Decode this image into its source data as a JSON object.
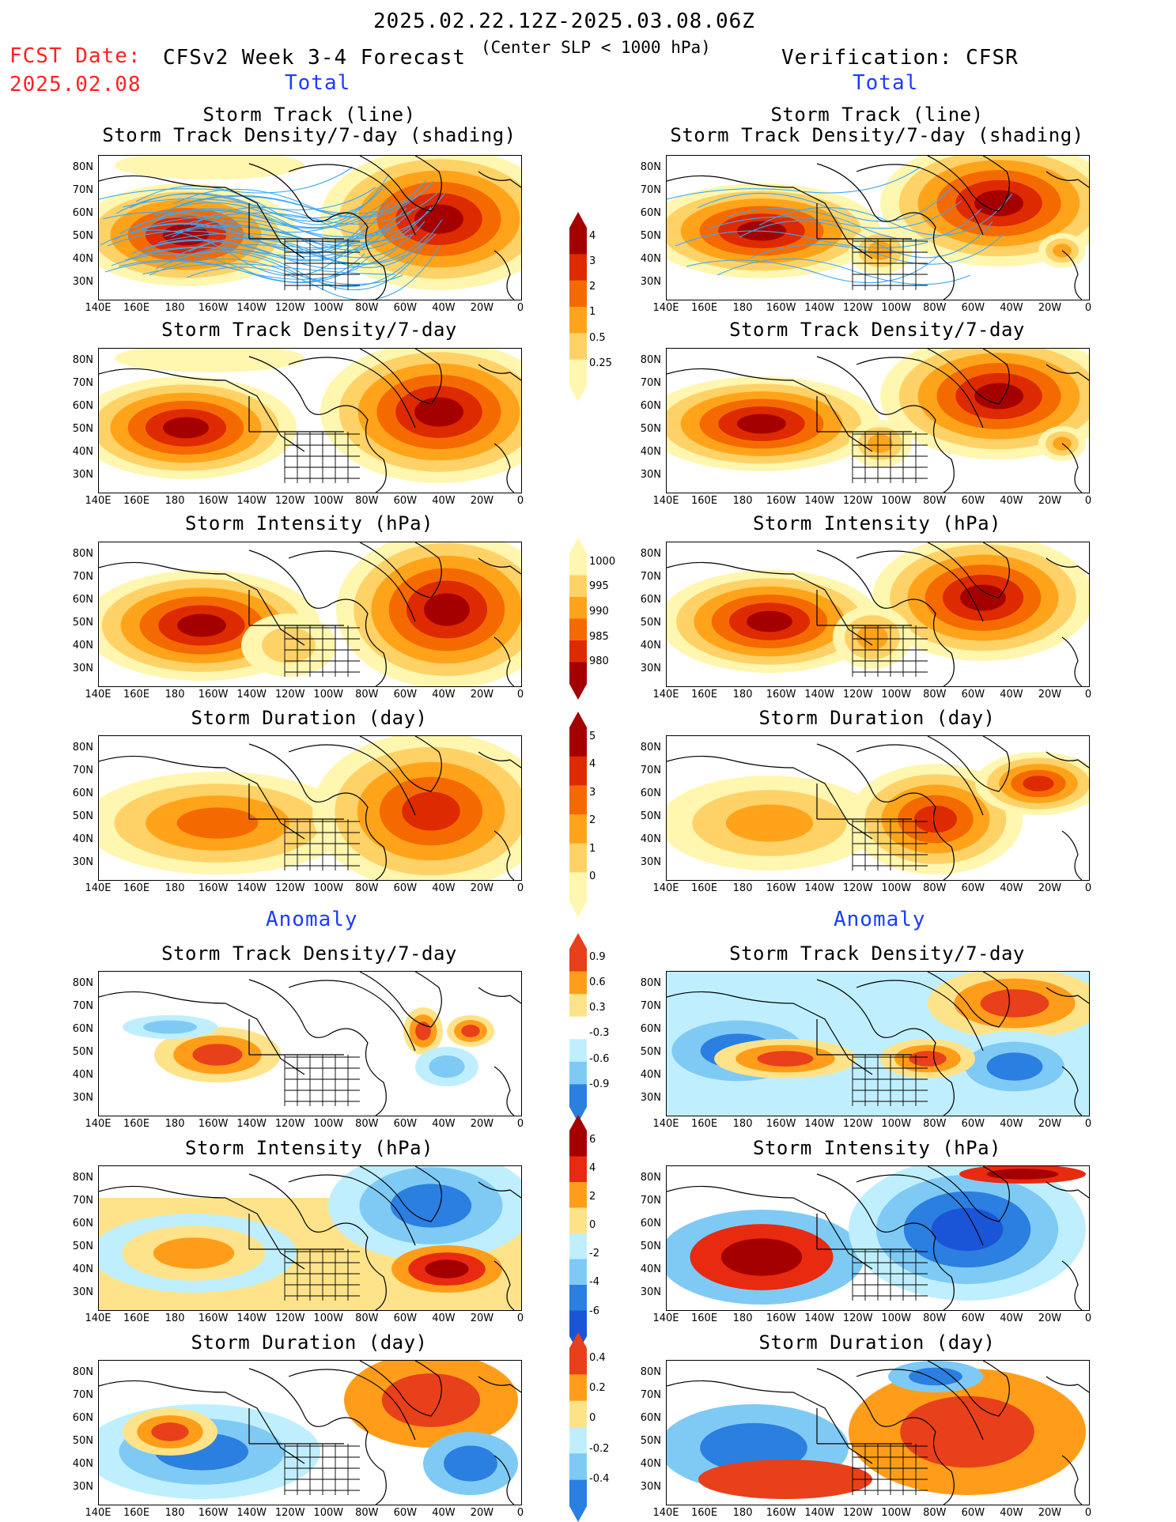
{
  "header": {
    "period": "2025.02.22.12Z-2025.03.08.06Z",
    "fcst_label": "FCST Date:",
    "fcst_date": "2025.02.08",
    "forecast_title": "CFSv2 Week 3-4 Forecast",
    "criterion": "(Center SLP < 1000 hPa)",
    "verification": "Verification: CFSR"
  },
  "sections": {
    "total": "Total",
    "anomaly": "Anomaly"
  },
  "axes": {
    "lat_labels": [
      "80N",
      "70N",
      "60N",
      "50N",
      "40N",
      "30N"
    ],
    "lon_labels": [
      "140E",
      "160E",
      "180",
      "160W",
      "140W",
      "120W",
      "100W",
      "80W",
      "60W",
      "40W",
      "20W",
      "0"
    ]
  },
  "panel_titles": {
    "track_line": "Storm Track (line)",
    "track_shading": "Storm Track Density/7-day (shading)",
    "density": "Storm Track Density/7-day",
    "intensity": "Storm Intensity (hPa)",
    "duration": "Storm Duration (day)"
  },
  "colorbars": {
    "density_total": {
      "labels": [
        "4",
        "3",
        "2",
        "1",
        "0.5",
        "0.25"
      ],
      "colors": [
        "#a50000",
        "#dd2a00",
        "#f56a00",
        "#ffa41a",
        "#ffd267",
        "#fff6b0"
      ]
    },
    "intensity_total": {
      "labels": [
        "1000",
        "995",
        "990",
        "985",
        "980"
      ],
      "colors": [
        "#fff6b0",
        "#ffd267",
        "#ffa41a",
        "#f56a00",
        "#dd2a00",
        "#a50000"
      ]
    },
    "duration_total": {
      "labels": [
        "5",
        "4",
        "3",
        "2",
        "1",
        "0"
      ],
      "colors": [
        "#a50000",
        "#dd2a00",
        "#f56a00",
        "#ffa41a",
        "#ffd267",
        "#fff6b0"
      ]
    },
    "density_anom": {
      "labels": [
        "0.9",
        "0.6",
        "0.3",
        "-0.3",
        "-0.6",
        "-0.9"
      ],
      "colors": [
        "#e8401a",
        "#ff9d1a",
        "#ffe38a",
        "#ffffff",
        "#bfefff",
        "#7fcaf5",
        "#2a7fe0"
      ]
    },
    "intensity_anom": {
      "labels": [
        "6",
        "4",
        "2",
        "0",
        "-2",
        "-4",
        "-6"
      ],
      "colors": [
        "#a50000",
        "#e82a10",
        "#ff9d1a",
        "#ffe38a",
        "#bfefff",
        "#7fcaf5",
        "#2a7fe0",
        "#1a55d8"
      ]
    },
    "duration_anom": {
      "labels": [
        "0.4",
        "0.2",
        "0",
        "-0.2",
        "-0.4"
      ],
      "colors": [
        "#e8401a",
        "#ff9d1a",
        "#ffe38a",
        "#bfefff",
        "#7fcaf5",
        "#2a7fe0"
      ]
    }
  },
  "colors": {
    "track_line": "#3fa8f0",
    "coast": "#000000"
  }
}
